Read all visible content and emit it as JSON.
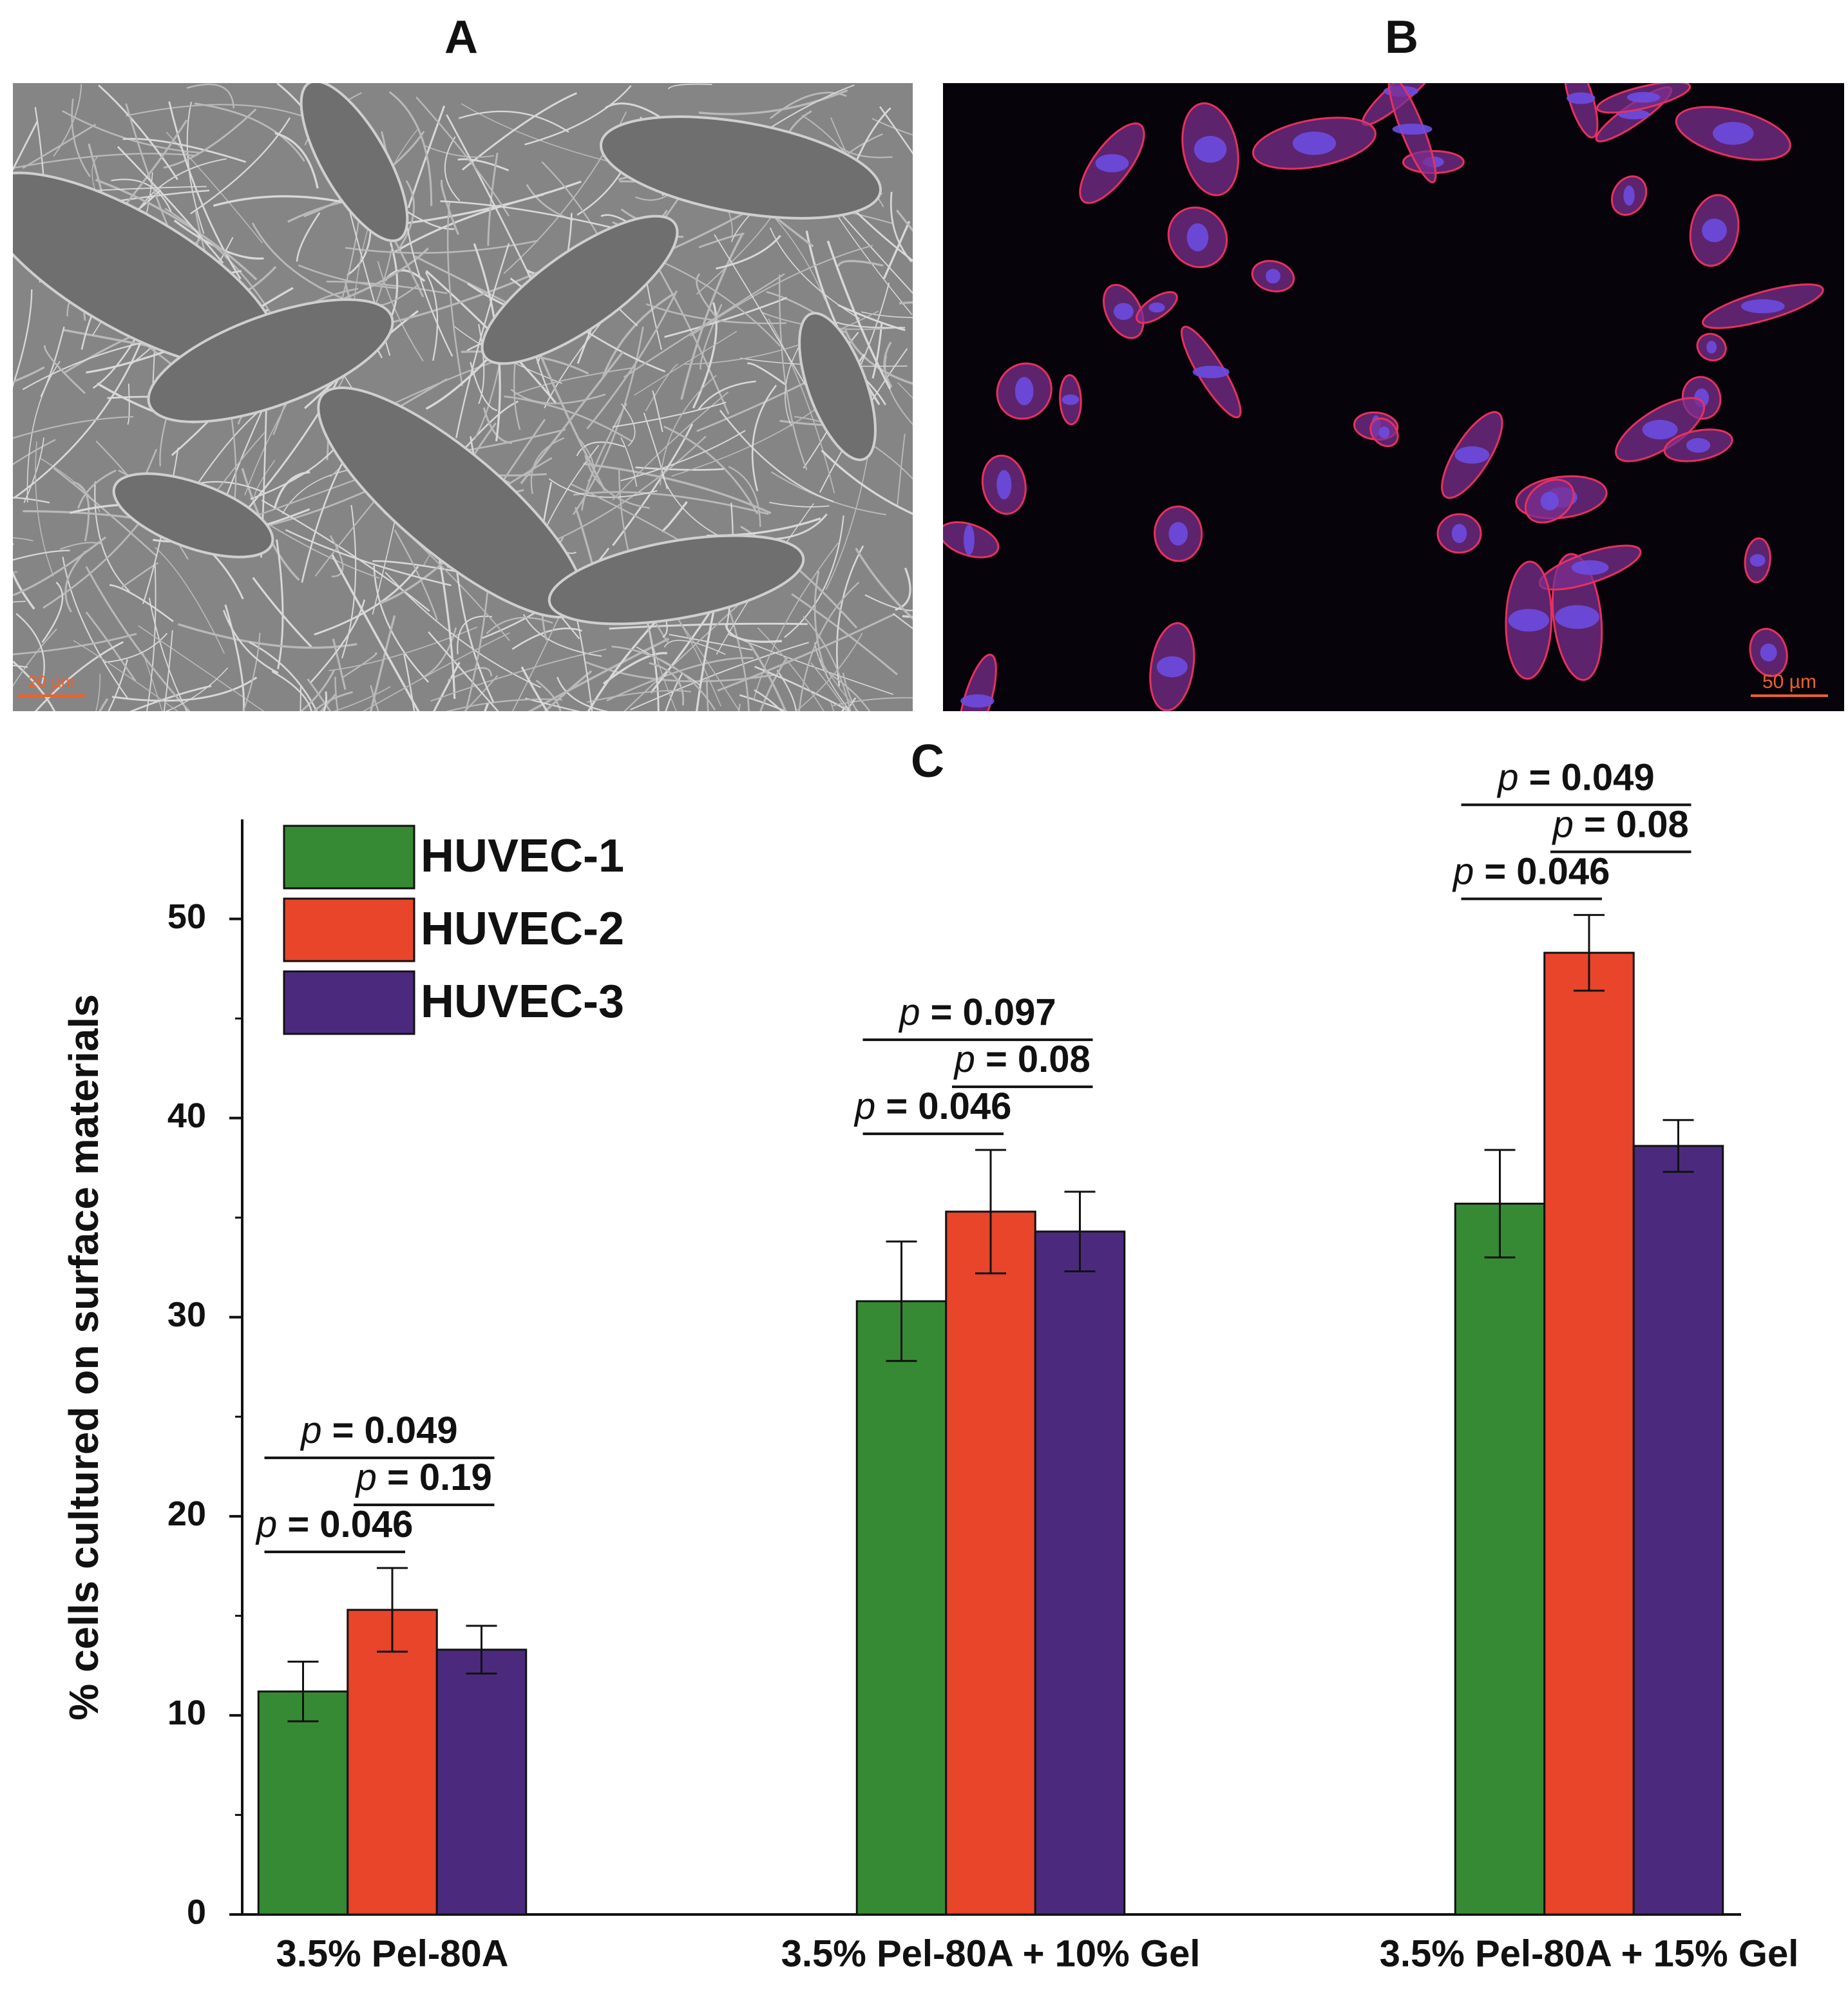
{
  "panels": [
    {
      "label": "A",
      "scale_bar": "20 µm"
    },
    {
      "label": "B",
      "scale_bar": "50 µm"
    }
  ],
  "chart_data": {
    "type": "bar",
    "title": "C",
    "ylabel": "% cells cultured on surface materials",
    "categories": [
      "3.5% Pel-80A",
      "3.5% Pel-80A + 10% Gel",
      "3.5% Pel-80A + 15% Gel"
    ],
    "series": [
      {
        "name": "HUVEC-1",
        "color": "#378a34",
        "values": [
          11.2,
          30.8,
          35.7
        ],
        "errors": [
          1.5,
          3.0,
          2.7
        ]
      },
      {
        "name": "HUVEC-2",
        "color": "#e8452b",
        "values": [
          15.3,
          35.3,
          48.3
        ],
        "errors": [
          2.1,
          3.1,
          1.9
        ]
      },
      {
        "name": "HUVEC-3",
        "color": "#4b2a7e",
        "values": [
          13.3,
          34.3,
          38.6
        ],
        "errors": [
          1.2,
          2.0,
          1.3
        ]
      }
    ],
    "ylim": [
      0,
      55
    ],
    "yticks": [
      0,
      10,
      20,
      30,
      40,
      50
    ],
    "minor_yticks": [
      5,
      15,
      25,
      35,
      45
    ],
    "legend": "upper left",
    "p_symbol": "p",
    "p_values": [
      [
        "= 0.049",
        "= 0.19",
        "= 0.046"
      ],
      [
        "= 0.097",
        "= 0.08",
        "= 0.046"
      ],
      [
        "= 0.049",
        "= 0.08",
        "= 0.046"
      ]
    ]
  }
}
